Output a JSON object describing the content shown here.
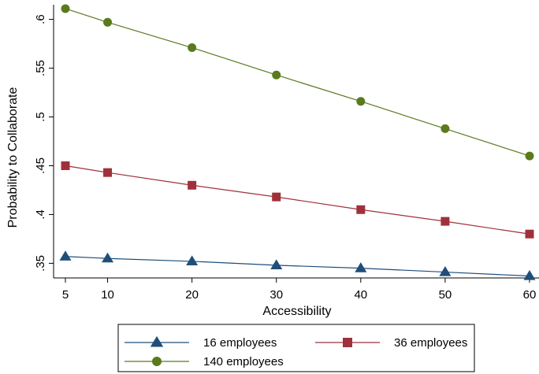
{
  "chart_data": {
    "type": "line",
    "title": "",
    "xlabel": "Accessibility",
    "ylabel": "Probability to Collaborate",
    "x": [
      5,
      10,
      20,
      30,
      40,
      50,
      60
    ],
    "x_ticks": [
      5,
      10,
      20,
      30,
      40,
      50,
      60
    ],
    "x_tick_labels": [
      "5",
      "10",
      "20",
      "30",
      "40",
      "50",
      "60"
    ],
    "xlim": [
      5,
      60
    ],
    "y_ticks": [
      0.35,
      0.4,
      0.45,
      0.5,
      0.55,
      0.6
    ],
    "y_tick_labels": [
      ".35",
      ".4",
      ".45",
      ".5",
      ".55",
      ".6"
    ],
    "ylim": [
      0.335,
      0.615
    ],
    "grid": false,
    "legend_position": "bottom",
    "series": [
      {
        "name": "16 employees",
        "marker": "triangle",
        "color": "#1f4e79",
        "values": [
          0.357,
          0.355,
          0.352,
          0.348,
          0.345,
          0.341,
          0.337
        ]
      },
      {
        "name": "36 employees",
        "marker": "square",
        "color": "#a0303a",
        "values": [
          0.45,
          0.443,
          0.43,
          0.418,
          0.405,
          0.393,
          0.38
        ]
      },
      {
        "name": "140 employees",
        "marker": "circle",
        "color": "#5a7a1e",
        "values": [
          0.611,
          0.597,
          0.571,
          0.543,
          0.516,
          0.488,
          0.46
        ]
      }
    ]
  }
}
